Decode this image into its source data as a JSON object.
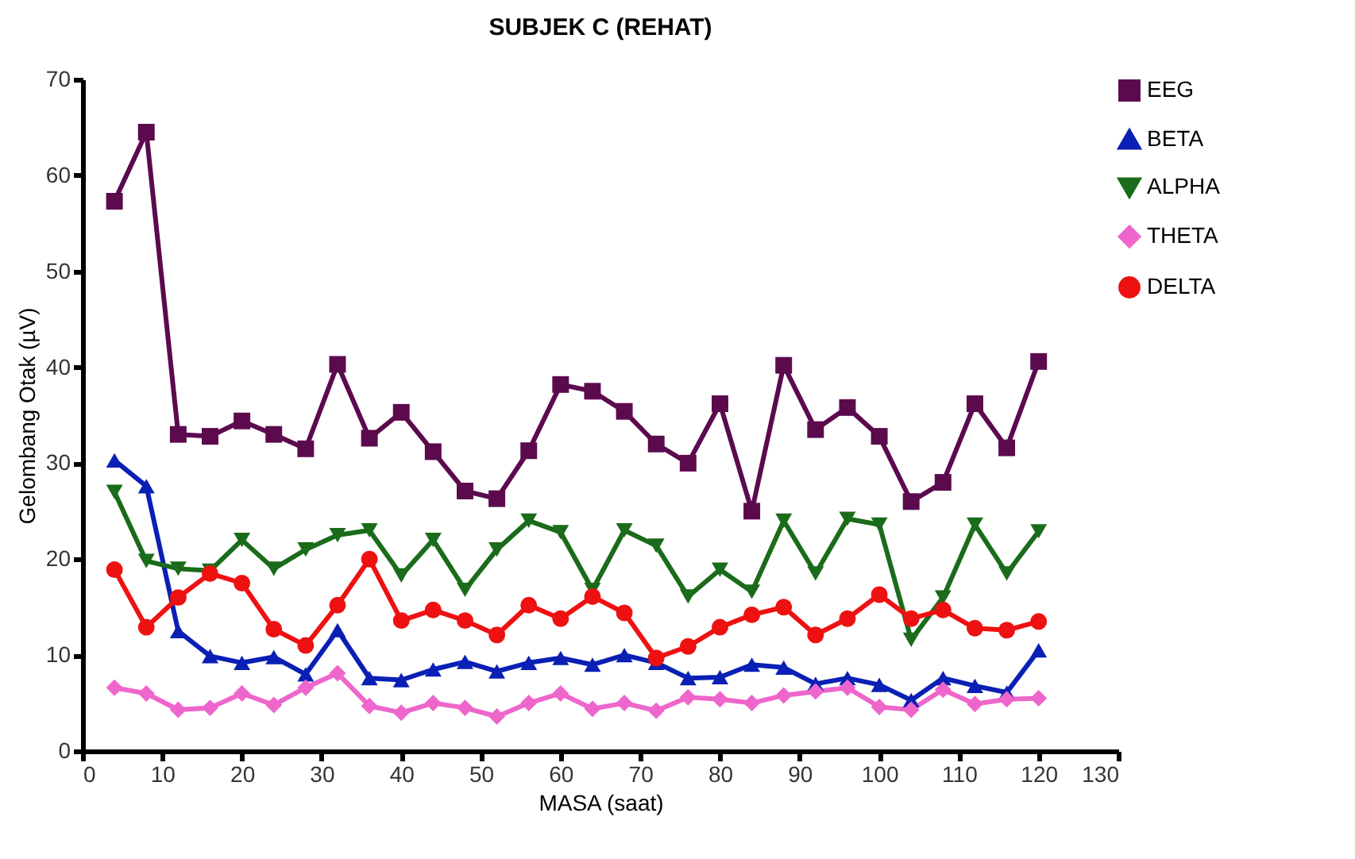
{
  "chart_data": {
    "type": "line",
    "title": "SUBJEK C (REHAT)",
    "xlabel": "MASA (saat)",
    "ylabel": "Gelombang Otak (µV)",
    "x": [
      4,
      8,
      12,
      16,
      20,
      24,
      28,
      32,
      36,
      40,
      44,
      48,
      52,
      56,
      60,
      64,
      68,
      72,
      76,
      80,
      84,
      88,
      92,
      96,
      100,
      104,
      108,
      112,
      116,
      120
    ],
    "series": [
      {
        "name": "EEG",
        "color": "#5c0a4e",
        "marker": "square",
        "values": [
          57.3,
          64.5,
          33,
          32.8,
          34.4,
          33,
          31.5,
          40.3,
          32.6,
          35.3,
          31.2,
          27.1,
          26.3,
          31.3,
          38.2,
          37.5,
          35.4,
          32,
          30,
          36.2,
          25,
          40.2,
          33.5,
          35.8,
          32.8,
          26,
          28,
          36.2,
          31.6,
          40.6
        ]
      },
      {
        "name": "BETA",
        "color": "#0a1fb4",
        "marker": "triangle",
        "values": [
          30.3,
          27.6,
          12.5,
          9.9,
          9.2,
          9.8,
          8,
          12.6,
          7.6,
          7.4,
          8.5,
          9.3,
          8.3,
          9.2,
          9.7,
          9,
          10,
          9.2,
          7.6,
          7.7,
          9,
          8.7,
          7,
          7.6,
          6.9,
          5.3,
          7.6,
          6.8,
          6.1,
          10.5
        ]
      },
      {
        "name": "ALPHA",
        "color": "#1a6b1a",
        "marker": "triangle-down",
        "values": [
          27,
          19.8,
          19,
          18.8,
          22,
          19,
          21,
          22.5,
          23,
          18.3,
          22,
          16.8,
          21,
          24,
          22.8,
          16.8,
          23,
          21.4,
          16.1,
          18.9,
          16.6,
          24,
          18.5,
          24.2,
          23.6,
          11.6,
          16,
          23.6,
          18.5,
          22.9
        ]
      },
      {
        "name": "THETA",
        "color": "#ee66cc",
        "marker": "diamond",
        "values": [
          6.6,
          6,
          4.3,
          4.5,
          6,
          4.8,
          6.6,
          8.1,
          4.7,
          4,
          5,
          4.5,
          3.6,
          5,
          6,
          4.4,
          5,
          4.2,
          5.6,
          5.4,
          5,
          5.8,
          6.2,
          6.6,
          4.6,
          4.3,
          6.4,
          4.9,
          5.4,
          5.5
        ]
      },
      {
        "name": "DELTA",
        "color": "#ee1111",
        "marker": "circle",
        "values": [
          18.9,
          12.9,
          16,
          18.5,
          17.5,
          12.7,
          11,
          15.2,
          20,
          13.6,
          14.7,
          13.6,
          12.1,
          15.2,
          13.8,
          16.1,
          14.4,
          9.7,
          10.9,
          12.9,
          14.2,
          15,
          12.1,
          13.8,
          16.3,
          13.8,
          14.7,
          12.8,
          12.6,
          13.5
        ]
      }
    ],
    "xlim": [
      0,
      130
    ],
    "xticks": [
      0,
      10,
      20,
      30,
      40,
      50,
      60,
      70,
      80,
      90,
      100,
      110,
      120,
      130
    ],
    "ylim": [
      0,
      70
    ],
    "yticks": [
      0,
      10,
      20,
      30,
      40,
      50,
      60,
      70
    ],
    "grid": false,
    "legend": "right",
    "line_style": "solid"
  }
}
